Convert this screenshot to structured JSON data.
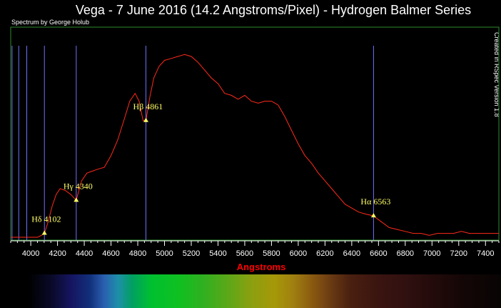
{
  "title": "Vega - 7 June 2016 (14.2 Angstroms/Pixel) - Hydrogen Balmer Series",
  "credit": "Spectrum by George Holub",
  "side_note": "Created in RSpec Version 1.8",
  "colors": {
    "background": "#000000",
    "plot_border": "#2e8b2e",
    "spectrum_line": "#ff2a1a",
    "balmer_lines": "#7070ff",
    "marker": "#ffff66",
    "label": "#ffff66",
    "axis_label": "#ff0000",
    "axis_text": "#ffffff"
  },
  "chart_data": {
    "type": "line",
    "title": "Vega - 7 June 2016 (14.2 Angstroms/Pixel) - Hydrogen Balmer Series",
    "xlabel": "Angstroms",
    "ylabel": "",
    "xlim": [
      3850,
      7500
    ],
    "ylim": [
      0,
      1
    ],
    "grid": false,
    "x_ticks": [
      4000,
      4200,
      4400,
      4600,
      4800,
      5000,
      5200,
      5400,
      5600,
      5800,
      6000,
      6200,
      6400,
      6600,
      6800,
      7000,
      7200,
      7400
    ],
    "series": [
      {
        "x": [
          3850,
          3950,
          4000,
          4050,
          4080,
          4102,
          4130,
          4160,
          4190,
          4220,
          4260,
          4300,
          4340,
          4380,
          4420,
          4460,
          4500,
          4550,
          4600,
          4650,
          4700,
          4740,
          4780,
          4810,
          4840,
          4861,
          4890,
          4920,
          4960,
          5000,
          5050,
          5100,
          5150,
          5200,
          5250,
          5300,
          5350,
          5400,
          5450,
          5500,
          5550,
          5600,
          5650,
          5700,
          5750,
          5800,
          5850,
          5900,
          5950,
          6000,
          6050,
          6100,
          6150,
          6200,
          6250,
          6300,
          6350,
          6400,
          6450,
          6500,
          6563,
          6620,
          6680,
          6740,
          6800,
          6860,
          6920,
          6980,
          7040,
          7100,
          7160,
          7220,
          7280,
          7340,
          7400,
          7450,
          7500
        ],
        "y": [
          0.0,
          0.0,
          0.0,
          0.0,
          0.01,
          0.02,
          0.08,
          0.16,
          0.22,
          0.25,
          0.24,
          0.22,
          0.19,
          0.29,
          0.33,
          0.34,
          0.35,
          0.36,
          0.42,
          0.5,
          0.61,
          0.7,
          0.74,
          0.7,
          0.6,
          0.6,
          0.72,
          0.82,
          0.88,
          0.91,
          0.92,
          0.93,
          0.94,
          0.93,
          0.9,
          0.86,
          0.82,
          0.79,
          0.74,
          0.73,
          0.71,
          0.73,
          0.7,
          0.69,
          0.7,
          0.7,
          0.68,
          0.62,
          0.55,
          0.48,
          0.42,
          0.38,
          0.33,
          0.29,
          0.25,
          0.21,
          0.17,
          0.15,
          0.13,
          0.12,
          0.11,
          0.08,
          0.05,
          0.04,
          0.03,
          0.02,
          0.02,
          0.01,
          0.02,
          0.02,
          0.02,
          0.03,
          0.02,
          0.02,
          0.02,
          0.02,
          0.02
        ]
      }
    ],
    "vertical_lines": [
      3860,
      3910,
      3970,
      4102,
      4340,
      4861,
      6563
    ],
    "annotations": [
      {
        "symbol": "Hδ",
        "text": "4102",
        "x": 4102,
        "y": 0.02
      },
      {
        "symbol": "Hγ",
        "text": "4340",
        "x": 4340,
        "y": 0.19
      },
      {
        "symbol": "Hβ",
        "text": "4861",
        "x": 4861,
        "y": 0.6
      },
      {
        "symbol": "Hα",
        "text": "6563",
        "x": 6563,
        "y": 0.11
      }
    ]
  }
}
